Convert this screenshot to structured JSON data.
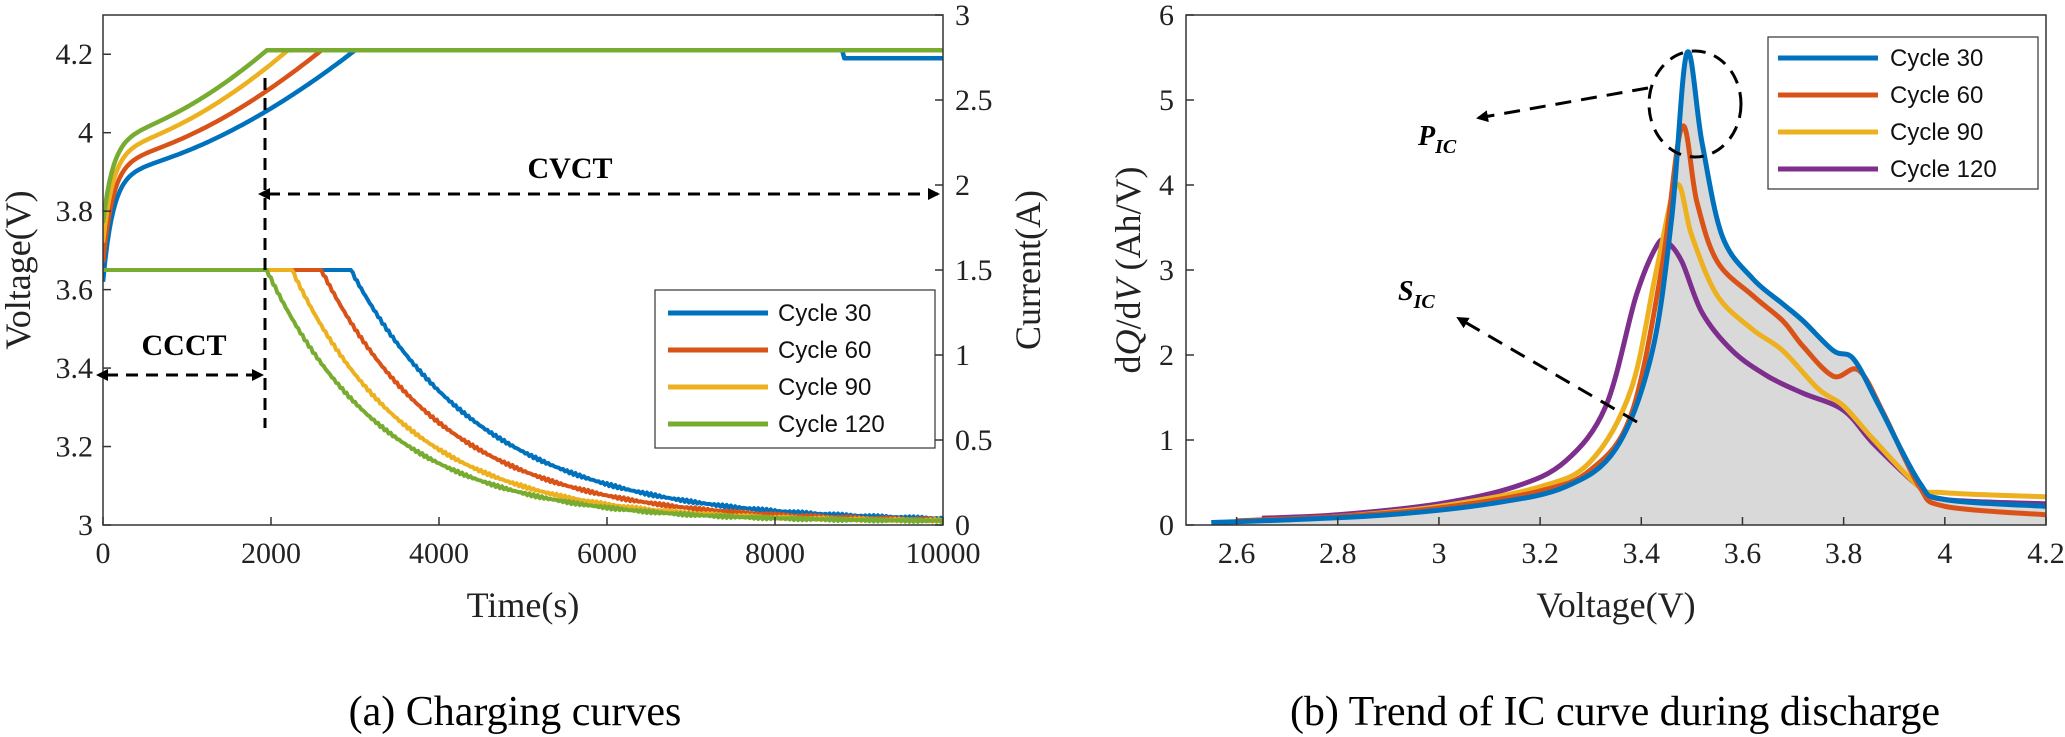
{
  "colors": {
    "cycle30": "#0072BD",
    "cycle60": "#D95319",
    "cycle90": "#EDB120",
    "cycle120": "#77AC30",
    "cycle120_ic": "#7E2F8E",
    "fill": "#D9D9D9"
  },
  "chart_data": [
    {
      "type": "line",
      "caption": "(a) Charging curves",
      "xlabel": "Time(s)",
      "ylabel": "Voltage(V)",
      "y2label": "Current(A)",
      "xlim": [
        0,
        10000
      ],
      "ylim": [
        3,
        4.3
      ],
      "y2lim": [
        0,
        3
      ],
      "xticks": [
        "0",
        "2000",
        "4000",
        "6000",
        "8000",
        "10000"
      ],
      "yticks": [
        "3",
        "3.2",
        "3.4",
        "3.6",
        "3.8",
        "4",
        "4.2"
      ],
      "y2ticks": [
        "0",
        "0.5",
        "1",
        "1.5",
        "2",
        "2.5",
        "3"
      ],
      "legend": {
        "placement": "lower-right",
        "entries": [
          "Cycle 30",
          "Cycle 60",
          "Cycle 90",
          "Cycle 120"
        ]
      },
      "annotations": {
        "ccct": "CCCT",
        "cvct": "CVCT"
      },
      "series": [
        {
          "name": "Cycle 30",
          "color": "cycle30",
          "cv_start": 3000,
          "voltage_at_2000": 4.05,
          "cc_end": 2950,
          "tau": 1600
        },
        {
          "name": "Cycle 60",
          "color": "cycle60",
          "cv_start": 2600,
          "voltage_at_2000": 4.11,
          "cc_end": 2600,
          "tau": 1500
        },
        {
          "name": "Cycle 90",
          "color": "cycle90",
          "cv_start": 2200,
          "voltage_at_2000": 4.17,
          "cc_end": 2250,
          "tau": 1400
        },
        {
          "name": "Cycle 120",
          "color": "cycle120",
          "cv_start": 1950,
          "voltage_at_2000": 4.21,
          "cc_end": 1950,
          "tau": 1400
        }
      ],
      "cc_current": 1.5,
      "cv_voltage": 4.21
    },
    {
      "type": "area",
      "caption": "(b) Trend of IC curve during discharge",
      "xlabel": "Voltage(V)",
      "ylabel_parts": [
        "d",
        "Q",
        "/d",
        "V",
        " (Ah/V)"
      ],
      "xlim": [
        2.5,
        4.2
      ],
      "ylim": [
        0,
        6
      ],
      "xticks": [
        "2.6",
        "2.8",
        "3",
        "3.2",
        "3.4",
        "3.6",
        "3.8",
        "4",
        "4.2"
      ],
      "yticks": [
        "0",
        "1",
        "2",
        "3",
        "4",
        "5",
        "6"
      ],
      "legend": {
        "placement": "top-right",
        "entries": [
          "Cycle 30",
          "Cycle 60",
          "Cycle 90",
          "Cycle 120"
        ]
      },
      "annotations": {
        "pic_main": "P",
        "pic_sub": "IC",
        "sic_main": "S",
        "sic_sub": "IC"
      },
      "series": [
        {
          "name": "Cycle 30",
          "color": "cycle30",
          "x": [
            2.55,
            2.7,
            2.9,
            3.1,
            3.25,
            3.35,
            3.42,
            3.46,
            3.49,
            3.52,
            3.56,
            3.62,
            3.68,
            3.72,
            3.78,
            3.82,
            3.87,
            3.95,
            4.0,
            4.2
          ],
          "y": [
            0.03,
            0.06,
            0.12,
            0.25,
            0.45,
            0.9,
            2.0,
            3.6,
            5.55,
            4.5,
            3.4,
            2.9,
            2.6,
            2.4,
            2.05,
            1.95,
            1.4,
            0.5,
            0.3,
            0.22
          ]
        },
        {
          "name": "Cycle 60",
          "color": "cycle60",
          "x": [
            2.6,
            2.8,
            3.0,
            3.2,
            3.3,
            3.38,
            3.44,
            3.48,
            3.51,
            3.55,
            3.62,
            3.68,
            3.72,
            3.78,
            3.83,
            3.88,
            3.95,
            4.0,
            4.2
          ],
          "y": [
            0.05,
            0.1,
            0.2,
            0.4,
            0.65,
            1.3,
            3.0,
            4.68,
            3.8,
            3.1,
            2.7,
            2.4,
            2.1,
            1.75,
            1.82,
            1.3,
            0.45,
            0.22,
            0.12
          ]
        },
        {
          "name": "Cycle 90",
          "color": "cycle90",
          "x": [
            2.62,
            2.8,
            3.0,
            3.2,
            3.3,
            3.38,
            3.43,
            3.47,
            3.5,
            3.55,
            3.62,
            3.68,
            3.75,
            3.8,
            3.86,
            3.95,
            4.0,
            4.2
          ],
          "y": [
            0.05,
            0.1,
            0.22,
            0.45,
            0.75,
            1.6,
            3.0,
            4.0,
            3.4,
            2.7,
            2.3,
            2.05,
            1.6,
            1.4,
            1.0,
            0.45,
            0.38,
            0.33
          ]
        },
        {
          "name": "Cycle 120",
          "color": "cycle120_ic",
          "x": [
            2.65,
            2.8,
            3.0,
            3.15,
            3.25,
            3.33,
            3.39,
            3.43,
            3.45,
            3.48,
            3.52,
            3.58,
            3.65,
            3.72,
            3.8,
            3.86,
            3.95,
            4.0,
            4.2
          ],
          "y": [
            0.08,
            0.12,
            0.25,
            0.45,
            0.75,
            1.4,
            2.7,
            3.28,
            3.33,
            3.1,
            2.5,
            2.05,
            1.75,
            1.55,
            1.35,
            0.95,
            0.45,
            0.3,
            0.25
          ]
        }
      ]
    }
  ]
}
